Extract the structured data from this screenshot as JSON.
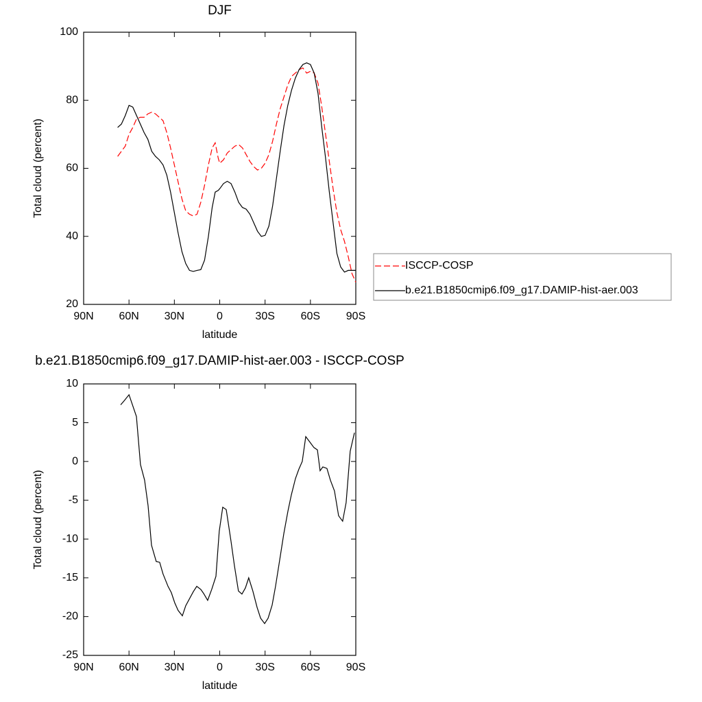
{
  "chart_data": [
    {
      "type": "line",
      "title": "DJF",
      "xlabel": "latitude",
      "ylabel": "Total cloud (percent)",
      "xlim": [
        90,
        -90
      ],
      "xticks": [
        {
          "value": 90,
          "label": "90N"
        },
        {
          "value": 60,
          "label": "60N"
        },
        {
          "value": 30,
          "label": "30N"
        },
        0,
        {
          "value": -30,
          "label": "30S"
        },
        {
          "value": -60,
          "label": "60S"
        },
        {
          "value": -90,
          "label": "90S"
        }
      ],
      "ylim": [
        20,
        100
      ],
      "yticks": [
        20,
        40,
        60,
        80,
        100
      ],
      "legend": "right",
      "x": [
        67.5,
        65,
        62.5,
        60,
        57.5,
        55,
        52.5,
        50,
        47.5,
        45,
        42.5,
        40,
        37.5,
        35,
        32.5,
        30,
        27.5,
        25,
        22.5,
        20,
        17.5,
        15,
        12.5,
        10,
        7.5,
        5,
        3,
        1,
        0,
        -2.5,
        -5,
        -7.5,
        -10,
        -12.5,
        -15,
        -17.5,
        -20,
        -22.5,
        -25,
        -27.5,
        -30,
        -32.5,
        -35,
        -37.5,
        -40,
        -42.5,
        -45,
        -47.5,
        -50,
        -52.5,
        -55,
        -57.5,
        -60,
        -62.5,
        -65,
        -67.5,
        -70,
        -72.5,
        -75,
        -77.5,
        -80,
        -82.5,
        -85,
        -87.5,
        -90
      ],
      "series": [
        {
          "name": "ISCCP-COSP",
          "color": "#ff0000",
          "dashed": true,
          "values": [
            63.5,
            65,
            66.5,
            70,
            72,
            74.5,
            75,
            75,
            76,
            76.5,
            76,
            75,
            74,
            70.5,
            66,
            61,
            56,
            51,
            47.5,
            46.5,
            46,
            46.5,
            50,
            55,
            61,
            66,
            67.5,
            63,
            61.5,
            62.5,
            64.5,
            65.5,
            66.5,
            67,
            66,
            64,
            62,
            60.5,
            59.5,
            60,
            61.5,
            64,
            68,
            73,
            77.5,
            81,
            84.5,
            87,
            88,
            89,
            89.5,
            88,
            88.5,
            88,
            85,
            78,
            70,
            62,
            54,
            47,
            42,
            38.5,
            34,
            29,
            26.5
          ]
        },
        {
          "name": "b.e21.B1850cmip6.f09_g17.DAMIP-hist-aer.003",
          "color": "#000000",
          "dashed": false,
          "values": [
            72,
            73,
            75.5,
            78.5,
            78,
            75.5,
            73,
            70.5,
            68.5,
            65,
            63.5,
            62.5,
            61,
            58,
            53,
            47,
            41,
            35.5,
            32,
            30,
            29.7,
            30,
            30.2,
            33,
            40,
            48.5,
            53,
            53.5,
            54,
            55.5,
            56.2,
            55.5,
            53,
            50,
            48.5,
            48,
            46.5,
            44,
            41.5,
            40,
            40.3,
            43,
            49,
            57,
            65,
            72.5,
            78.5,
            83,
            86.5,
            89,
            90.5,
            91,
            90.5,
            88,
            82,
            72,
            63,
            53,
            44,
            35,
            31,
            29.5,
            30,
            30,
            30
          ]
        }
      ]
    },
    {
      "type": "line",
      "title": "b.e21.B1850cmip6.f09_g17.DAMIP-hist-aer.003 - ISCCP-COSP",
      "xlabel": "latitude",
      "ylabel": "Total cloud (percent)",
      "xlim": [
        90,
        -90
      ],
      "xticks": [
        {
          "value": 90,
          "label": "90N"
        },
        {
          "value": 60,
          "label": "60N"
        },
        {
          "value": 30,
          "label": "30N"
        },
        0,
        {
          "value": -30,
          "label": "30S"
        },
        {
          "value": -60,
          "label": "60S"
        },
        {
          "value": -90,
          "label": "90S"
        }
      ],
      "ylim": [
        -25,
        10
      ],
      "yticks": [
        -25,
        -20,
        -15,
        -10,
        -5,
        0,
        5,
        10
      ],
      "color": "#000000",
      "x": [
        65.5,
        63.3,
        60,
        55.1,
        52.4,
        49.7,
        47.4,
        45.1,
        42,
        39.7,
        37.5,
        34.2,
        32,
        29.8,
        27.5,
        24.7,
        22.5,
        17.5,
        15.2,
        12.5,
        10.7,
        8,
        5.3,
        2.5,
        0.3,
        -2,
        -4.3,
        -7.5,
        -9.7,
        -12.4,
        -14.7,
        -17,
        -19.2,
        -21.9,
        -24.7,
        -27,
        -29.7,
        -32,
        -34.7,
        -36.9,
        -39.6,
        -42.4,
        -45.1,
        -47.4,
        -50.1,
        -52.3,
        -54.6,
        -56.9,
        -59.6,
        -62.3,
        -64.6,
        -66.4,
        -68.2,
        -70.9,
        -73.2,
        -75.9,
        -78.6,
        -81.3,
        -83.6,
        -86.3,
        -89.1
      ],
      "values": [
        7.3,
        7.8,
        8.6,
        5.8,
        -0.4,
        -2.4,
        -5.7,
        -10.8,
        -12.9,
        -13,
        -14.5,
        -16.1,
        -16.9,
        -18.2,
        -19.2,
        -19.9,
        -18.6,
        -16.8,
        -16.1,
        -16.5,
        -17,
        -17.9,
        -16.5,
        -14.8,
        -9,
        -5.9,
        -6.2,
        -10.3,
        -13.4,
        -16.7,
        -17.1,
        -16.3,
        -15,
        -16.7,
        -18.8,
        -20.2,
        -20.9,
        -20.2,
        -18.5,
        -16.1,
        -12.8,
        -9.3,
        -6.4,
        -4.3,
        -2.2,
        -1,
        0,
        3.2,
        2.5,
        1.8,
        1.5,
        -1.2,
        -0.7,
        -0.9,
        -2.4,
        -3.8,
        -7,
        -7.7,
        -5.3,
        1.3,
        3.7
      ]
    }
  ]
}
